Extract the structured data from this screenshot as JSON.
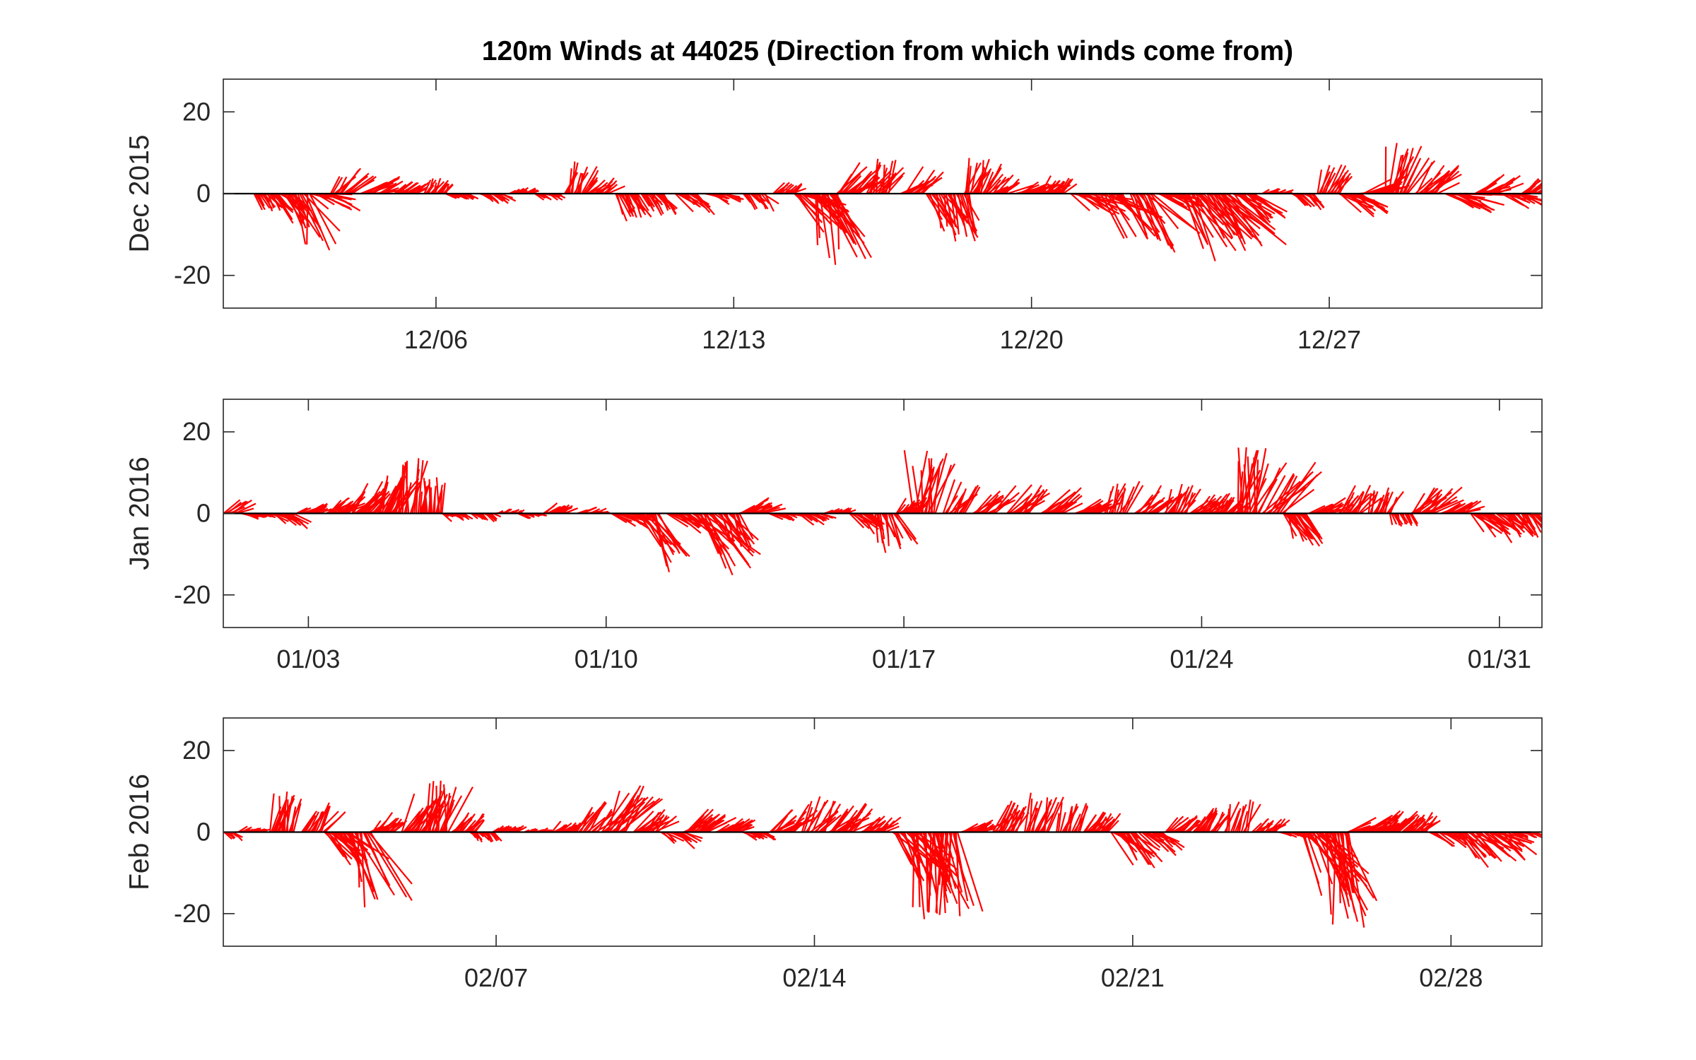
{
  "figure": {
    "title": "120m Winds at 44025 (Direction from which winds come from)"
  },
  "chart_data": [
    {
      "type": "feather",
      "ylabel": "Dec 2015",
      "ylim": [
        -28,
        28
      ],
      "yticks": [
        -20,
        0,
        20
      ],
      "xlim": [
        "2015-12-01",
        "2016-01-01"
      ],
      "xticks": [
        {
          "date": "2015-12-06",
          "label": "12/06"
        },
        {
          "date": "2015-12-13",
          "label": "12/13"
        },
        {
          "date": "2015-12-20",
          "label": "12/20"
        },
        {
          "date": "2015-12-27",
          "label": "12/27"
        }
      ],
      "color": "#ff0000",
      "day_length": 31,
      "events": [
        {
          "d": 1.0,
          "len": 5,
          "dir": -55,
          "spread": 30
        },
        {
          "d": 1.4,
          "len": 9,
          "dir": -45,
          "spread": 35
        },
        {
          "d": 1.8,
          "len": 15,
          "dir": -70,
          "spread": 50
        },
        {
          "d": 2.3,
          "len": 9,
          "dir": -20,
          "spread": 45
        },
        {
          "d": 2.8,
          "len": 8,
          "dir": 45,
          "spread": 40
        },
        {
          "d": 3.5,
          "len": 8,
          "dir": 20,
          "spread": 25
        },
        {
          "d": 4.3,
          "len": 5,
          "dir": 30,
          "spread": 25
        },
        {
          "d": 5.0,
          "len": 4.5,
          "dir": 60,
          "spread": 35
        },
        {
          "d": 5.5,
          "len": 3,
          "dir": -20,
          "spread": 25
        },
        {
          "d": 6.3,
          "len": 4,
          "dir": -30,
          "spread": 25
        },
        {
          "d": 7.0,
          "len": 3,
          "dir": 30,
          "spread": 25
        },
        {
          "d": 7.6,
          "len": 3,
          "dir": -25,
          "spread": 25
        },
        {
          "d": 8.3,
          "len": 8,
          "dir": 65,
          "spread": 45
        },
        {
          "d": 8.8,
          "len": 5,
          "dir": 35,
          "spread": 30
        },
        {
          "d": 9.5,
          "len": 8,
          "dir": -65,
          "spread": 35
        },
        {
          "d": 10.1,
          "len": 6,
          "dir": -50,
          "spread": 35
        },
        {
          "d": 10.9,
          "len": 7,
          "dir": -40,
          "spread": 30
        },
        {
          "d": 11.6,
          "len": 5,
          "dir": -25,
          "spread": 30
        },
        {
          "d": 12.5,
          "len": 5,
          "dir": -50,
          "spread": 40
        },
        {
          "d": 13.2,
          "len": 4,
          "dir": 40,
          "spread": 40
        },
        {
          "d": 13.7,
          "len": 13,
          "dir": -35,
          "spread": 40
        },
        {
          "d": 14.2,
          "len": 18,
          "dir": -70,
          "spread": 40
        },
        {
          "d": 14.7,
          "len": 10,
          "dir": 40,
          "spread": 40
        },
        {
          "d": 15.4,
          "len": 9,
          "dir": 65,
          "spread": 45
        },
        {
          "d": 16.2,
          "len": 8,
          "dir": 40,
          "spread": 45
        },
        {
          "d": 16.8,
          "len": 12,
          "dir": -65,
          "spread": 45
        },
        {
          "d": 17.3,
          "len": 13,
          "dir": -70,
          "spread": 35
        },
        {
          "d": 17.7,
          "len": 9,
          "dir": 70,
          "spread": 35
        },
        {
          "d": 18.2,
          "len": 7,
          "dir": 35,
          "spread": 35
        },
        {
          "d": 18.9,
          "len": 7,
          "dir": 20,
          "spread": 30
        },
        {
          "d": 19.5,
          "len": 5,
          "dir": 45,
          "spread": 35
        },
        {
          "d": 20.2,
          "len": 11,
          "dir": -25,
          "spread": 35
        },
        {
          "d": 20.9,
          "len": 14,
          "dir": -45,
          "spread": 45
        },
        {
          "d": 21.6,
          "len": 17,
          "dir": -55,
          "spread": 40
        },
        {
          "d": 22.2,
          "len": 9,
          "dir": -20,
          "spread": 30
        },
        {
          "d": 22.8,
          "len": 20,
          "dir": -60,
          "spread": 40
        },
        {
          "d": 23.4,
          "len": 20,
          "dir": -50,
          "spread": 40
        },
        {
          "d": 24.0,
          "len": 12,
          "dir": -35,
          "spread": 40
        },
        {
          "d": 24.7,
          "len": 3,
          "dir": 20,
          "spread": 25
        },
        {
          "d": 25.4,
          "len": 5,
          "dir": -40,
          "spread": 30
        },
        {
          "d": 26.0,
          "len": 8,
          "dir": 65,
          "spread": 35
        },
        {
          "d": 26.5,
          "len": 10,
          "dir": -25,
          "spread": 35
        },
        {
          "d": 27.0,
          "len": 9,
          "dir": 20,
          "spread": 30
        },
        {
          "d": 27.6,
          "len": 13,
          "dir": 70,
          "spread": 40
        },
        {
          "d": 28.3,
          "len": 10,
          "dir": 45,
          "spread": 40
        },
        {
          "d": 29.0,
          "len": 11,
          "dir": -15,
          "spread": 35
        },
        {
          "d": 29.7,
          "len": 8,
          "dir": 25,
          "spread": 35
        },
        {
          "d": 30.3,
          "len": 7,
          "dir": -20,
          "spread": 30
        },
        {
          "d": 30.8,
          "len": 6,
          "dir": 40,
          "spread": 35
        }
      ]
    },
    {
      "type": "feather",
      "ylabel": "Jan 2016",
      "ylim": [
        -28,
        28
      ],
      "yticks": [
        -20,
        0,
        20
      ],
      "xlim": [
        "2016-01-01",
        "2016-02-01"
      ],
      "xticks": [
        {
          "date": "2016-01-03",
          "label": "01/03"
        },
        {
          "date": "2016-01-10",
          "label": "01/10"
        },
        {
          "date": "2016-01-17",
          "label": "01/17"
        },
        {
          "date": "2016-01-24",
          "label": "01/24"
        },
        {
          "date": "2016-01-31",
          "label": "01/31"
        }
      ],
      "color": "#ff0000",
      "day_length": 31,
      "events": [
        {
          "d": 0.1,
          "len": 6,
          "dir": 30,
          "spread": 30
        },
        {
          "d": 0.7,
          "len": 4,
          "dir": -15,
          "spread": 25
        },
        {
          "d": 1.4,
          "len": 6,
          "dir": -30,
          "spread": 30
        },
        {
          "d": 2.0,
          "len": 5,
          "dir": 25,
          "spread": 25
        },
        {
          "d": 2.7,
          "len": 7,
          "dir": 35,
          "spread": 30
        },
        {
          "d": 3.3,
          "len": 9,
          "dir": 45,
          "spread": 35
        },
        {
          "d": 3.9,
          "len": 11,
          "dir": 65,
          "spread": 35
        },
        {
          "d": 4.4,
          "len": 14,
          "dir": 80,
          "spread": 30
        },
        {
          "d": 4.9,
          "len": 9,
          "dir": 85,
          "spread": 25
        },
        {
          "d": 5.4,
          "len": 3,
          "dir": -30,
          "spread": 30
        },
        {
          "d": 6.1,
          "len": 3,
          "dir": -35,
          "spread": 30
        },
        {
          "d": 6.7,
          "len": 2,
          "dir": 20,
          "spread": 30
        },
        {
          "d": 7.2,
          "len": 3,
          "dir": -20,
          "spread": 30
        },
        {
          "d": 7.8,
          "len": 4,
          "dir": 30,
          "spread": 30
        },
        {
          "d": 8.6,
          "len": 4,
          "dir": 15,
          "spread": 25
        },
        {
          "d": 9.4,
          "len": 7,
          "dir": -25,
          "spread": 30
        },
        {
          "d": 10.0,
          "len": 16,
          "dir": -60,
          "spread": 40
        },
        {
          "d": 10.7,
          "len": 8,
          "dir": -30,
          "spread": 30
        },
        {
          "d": 11.3,
          "len": 18,
          "dir": -50,
          "spread": 40
        },
        {
          "d": 11.9,
          "len": 10,
          "dir": -60,
          "spread": 40
        },
        {
          "d": 12.4,
          "len": 7,
          "dir": 25,
          "spread": 30
        },
        {
          "d": 13.1,
          "len": 4,
          "dir": -15,
          "spread": 30
        },
        {
          "d": 13.8,
          "len": 5,
          "dir": -30,
          "spread": 30
        },
        {
          "d": 14.4,
          "len": 3,
          "dir": 20,
          "spread": 20
        },
        {
          "d": 15.0,
          "len": 7,
          "dir": -45,
          "spread": 35
        },
        {
          "d": 15.6,
          "len": 10,
          "dir": -70,
          "spread": 40
        },
        {
          "d": 16.1,
          "len": 5,
          "dir": 45,
          "spread": 35
        },
        {
          "d": 16.5,
          "len": 17,
          "dir": 80,
          "spread": 40
        },
        {
          "d": 17.2,
          "len": 9,
          "dir": 55,
          "spread": 40
        },
        {
          "d": 17.9,
          "len": 9,
          "dir": 40,
          "spread": 35
        },
        {
          "d": 18.7,
          "len": 10,
          "dir": 40,
          "spread": 35
        },
        {
          "d": 19.5,
          "len": 9,
          "dir": 35,
          "spread": 30
        },
        {
          "d": 20.3,
          "len": 7,
          "dir": 25,
          "spread": 30
        },
        {
          "d": 21.0,
          "len": 9,
          "dir": 65,
          "spread": 35
        },
        {
          "d": 21.7,
          "len": 8,
          "dir": 45,
          "spread": 35
        },
        {
          "d": 22.4,
          "len": 8,
          "dir": 60,
          "spread": 35
        },
        {
          "d": 23.0,
          "len": 7,
          "dir": 40,
          "spread": 30
        },
        {
          "d": 23.6,
          "len": 6,
          "dir": 50,
          "spread": 35
        },
        {
          "d": 24.1,
          "len": 17,
          "dir": 75,
          "spread": 40
        },
        {
          "d": 24.7,
          "len": 16,
          "dir": 50,
          "spread": 40
        },
        {
          "d": 25.2,
          "len": 10,
          "dir": -60,
          "spread": 40
        },
        {
          "d": 25.8,
          "len": 7,
          "dir": 25,
          "spread": 30
        },
        {
          "d": 26.5,
          "len": 8,
          "dir": 50,
          "spread": 40
        },
        {
          "d": 27.2,
          "len": 7,
          "dir": 70,
          "spread": 35
        },
        {
          "d": 27.7,
          "len": 4,
          "dir": -70,
          "spread": 30
        },
        {
          "d": 28.2,
          "len": 10,
          "dir": 40,
          "spread": 40
        },
        {
          "d": 28.9,
          "len": 6,
          "dir": 20,
          "spread": 30
        },
        {
          "d": 29.6,
          "len": 9,
          "dir": -40,
          "spread": 35
        },
        {
          "d": 30.2,
          "len": 8,
          "dir": -45,
          "spread": 35
        },
        {
          "d": 30.8,
          "len": 8,
          "dir": -50,
          "spread": 35
        }
      ]
    },
    {
      "type": "feather",
      "ylabel": "Feb 2016",
      "ylim": [
        -28,
        28
      ],
      "yticks": [
        -20,
        0,
        20
      ],
      "xlim": [
        "2016-02-01",
        "2016-03-01"
      ],
      "xticks": [
        {
          "date": "2016-02-07",
          "label": "02/07"
        },
        {
          "date": "2016-02-14",
          "label": "02/14"
        },
        {
          "date": "2016-02-21",
          "label": "02/21"
        },
        {
          "date": "2016-02-28",
          "label": "02/28"
        }
      ],
      "color": "#ff0000",
      "day_length": 29,
      "events": [
        {
          "d": 0.0,
          "len": 3,
          "dir": -40,
          "spread": 30
        },
        {
          "d": 0.6,
          "len": 3,
          "dir": 20,
          "spread": 25
        },
        {
          "d": 1.3,
          "len": 10,
          "dir": 75,
          "spread": 35
        },
        {
          "d": 2.0,
          "len": 8,
          "dir": 55,
          "spread": 35
        },
        {
          "d": 2.5,
          "len": 12,
          "dir": -45,
          "spread": 35
        },
        {
          "d": 3.0,
          "len": 20,
          "dir": -70,
          "spread": 40
        },
        {
          "d": 3.5,
          "len": 6,
          "dir": 40,
          "spread": 35
        },
        {
          "d": 4.2,
          "len": 10,
          "dir": 60,
          "spread": 35
        },
        {
          "d": 4.7,
          "len": 13,
          "dir": 75,
          "spread": 40
        },
        {
          "d": 5.3,
          "len": 6,
          "dir": 45,
          "spread": 30
        },
        {
          "d": 5.7,
          "len": 3,
          "dir": -50,
          "spread": 30
        },
        {
          "d": 6.2,
          "len": 3,
          "dir": 25,
          "spread": 25
        },
        {
          "d": 6.9,
          "len": 2,
          "dir": 20,
          "spread": 25
        },
        {
          "d": 7.5,
          "len": 4,
          "dir": 40,
          "spread": 30
        },
        {
          "d": 8.0,
          "len": 10,
          "dir": 50,
          "spread": 40
        },
        {
          "d": 8.6,
          "len": 14,
          "dir": 55,
          "spread": 40
        },
        {
          "d": 9.3,
          "len": 8,
          "dir": 40,
          "spread": 35
        },
        {
          "d": 9.9,
          "len": 6,
          "dir": -30,
          "spread": 30
        },
        {
          "d": 10.4,
          "len": 8,
          "dir": 35,
          "spread": 30
        },
        {
          "d": 11.1,
          "len": 6,
          "dir": 25,
          "spread": 30
        },
        {
          "d": 11.7,
          "len": 4,
          "dir": -25,
          "spread": 30
        },
        {
          "d": 12.3,
          "len": 9,
          "dir": 40,
          "spread": 35
        },
        {
          "d": 13.0,
          "len": 10,
          "dir": 55,
          "spread": 40
        },
        {
          "d": 13.6,
          "len": 9,
          "dir": 40,
          "spread": 35
        },
        {
          "d": 14.3,
          "len": 6,
          "dir": 35,
          "spread": 30
        },
        {
          "d": 15.0,
          "len": 15,
          "dir": -55,
          "spread": 40
        },
        {
          "d": 15.4,
          "len": 22,
          "dir": -75,
          "spread": 35
        },
        {
          "d": 15.9,
          "len": 22,
          "dir": -85,
          "spread": 30
        },
        {
          "d": 16.5,
          "len": 6,
          "dir": 25,
          "spread": 30
        },
        {
          "d": 17.2,
          "len": 9,
          "dir": 60,
          "spread": 35
        },
        {
          "d": 17.9,
          "len": 10,
          "dir": 70,
          "spread": 35
        },
        {
          "d": 18.6,
          "len": 8,
          "dir": 70,
          "spread": 35
        },
        {
          "d": 19.2,
          "len": 6,
          "dir": 50,
          "spread": 30
        },
        {
          "d": 19.8,
          "len": 11,
          "dir": -45,
          "spread": 40
        },
        {
          "d": 20.4,
          "len": 8,
          "dir": -30,
          "spread": 35
        },
        {
          "d": 21.0,
          "len": 6,
          "dir": 40,
          "spread": 30
        },
        {
          "d": 21.6,
          "len": 8,
          "dir": 55,
          "spread": 35
        },
        {
          "d": 22.3,
          "len": 9,
          "dir": 70,
          "spread": 35
        },
        {
          "d": 22.9,
          "len": 5,
          "dir": 40,
          "spread": 35
        },
        {
          "d": 23.5,
          "len": 4,
          "dir": -15,
          "spread": 25
        },
        {
          "d": 24.0,
          "len": 18,
          "dir": -55,
          "spread": 40
        },
        {
          "d": 24.5,
          "len": 24,
          "dir": -75,
          "spread": 40
        },
        {
          "d": 25.0,
          "len": 8,
          "dir": 20,
          "spread": 35
        },
        {
          "d": 25.6,
          "len": 8,
          "dir": 35,
          "spread": 35
        },
        {
          "d": 26.2,
          "len": 6,
          "dir": 45,
          "spread": 35
        },
        {
          "d": 26.8,
          "len": 7,
          "dir": -25,
          "spread": 30
        },
        {
          "d": 27.4,
          "len": 12,
          "dir": -40,
          "spread": 35
        },
        {
          "d": 28.0,
          "len": 10,
          "dir": -35,
          "spread": 35
        },
        {
          "d": 28.6,
          "len": 4,
          "dir": -15,
          "spread": 25
        }
      ]
    }
  ]
}
